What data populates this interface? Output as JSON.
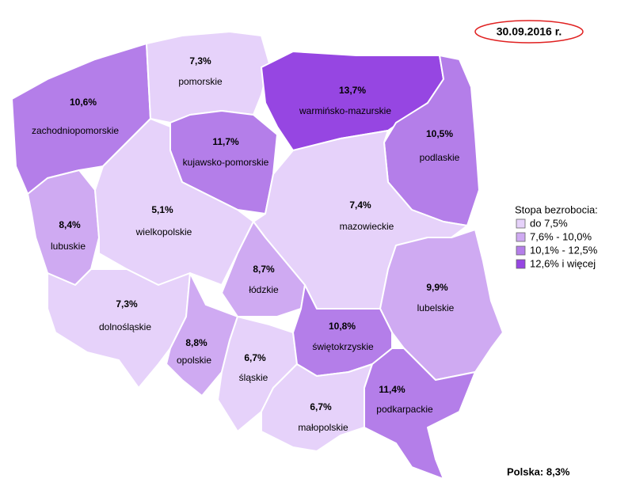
{
  "date": "30.09.2016 r.",
  "summary": "Polska: 8,3%",
  "legend": {
    "title": "Stopa bezrobocia:",
    "items": [
      {
        "label": "do 7,5%",
        "color": "#e6d2fa"
      },
      {
        "label": "7,6% - 10,0%",
        "color": "#cfaaf2"
      },
      {
        "label": "10,1% - 12,5%",
        "color": "#b47ee9"
      },
      {
        "label": "12,6% i więcej",
        "color": "#9646e2"
      }
    ]
  },
  "regions": [
    {
      "name": "zachodniopomorskie",
      "value": "10,6%",
      "color": "#b47ee9"
    },
    {
      "name": "pomorskie",
      "value": "7,3%",
      "color": "#e6d2fa"
    },
    {
      "name": "warmińsko-mazurskie",
      "value": "13,7%",
      "color": "#9646e2"
    },
    {
      "name": "podlaskie",
      "value": "10,5%",
      "color": "#b47ee9"
    },
    {
      "name": "kujawsko-pomorskie",
      "value": "11,7%",
      "color": "#b47ee9"
    },
    {
      "name": "lubuskie",
      "value": "8,4%",
      "color": "#cfaaf2"
    },
    {
      "name": "wielkopolskie",
      "value": "5,1%",
      "color": "#e6d2fa"
    },
    {
      "name": "mazowieckie",
      "value": "7,4%",
      "color": "#e6d2fa"
    },
    {
      "name": "łódzkie",
      "value": "8,7%",
      "color": "#cfaaf2"
    },
    {
      "name": "lubelskie",
      "value": "9,9%",
      "color": "#cfaaf2"
    },
    {
      "name": "dolnośląskie",
      "value": "7,3%",
      "color": "#e6d2fa"
    },
    {
      "name": "opolskie",
      "value": "8,8%",
      "color": "#cfaaf2"
    },
    {
      "name": "śląskie",
      "value": "6,7%",
      "color": "#e6d2fa"
    },
    {
      "name": "świętokrzyskie",
      "value": "10,8%",
      "color": "#b47ee9"
    },
    {
      "name": "małopolskie",
      "value": "6,7%",
      "color": "#e6d2fa"
    },
    {
      "name": "podkarpackie",
      "value": "11,4%",
      "color": "#b47ee9"
    }
  ]
}
